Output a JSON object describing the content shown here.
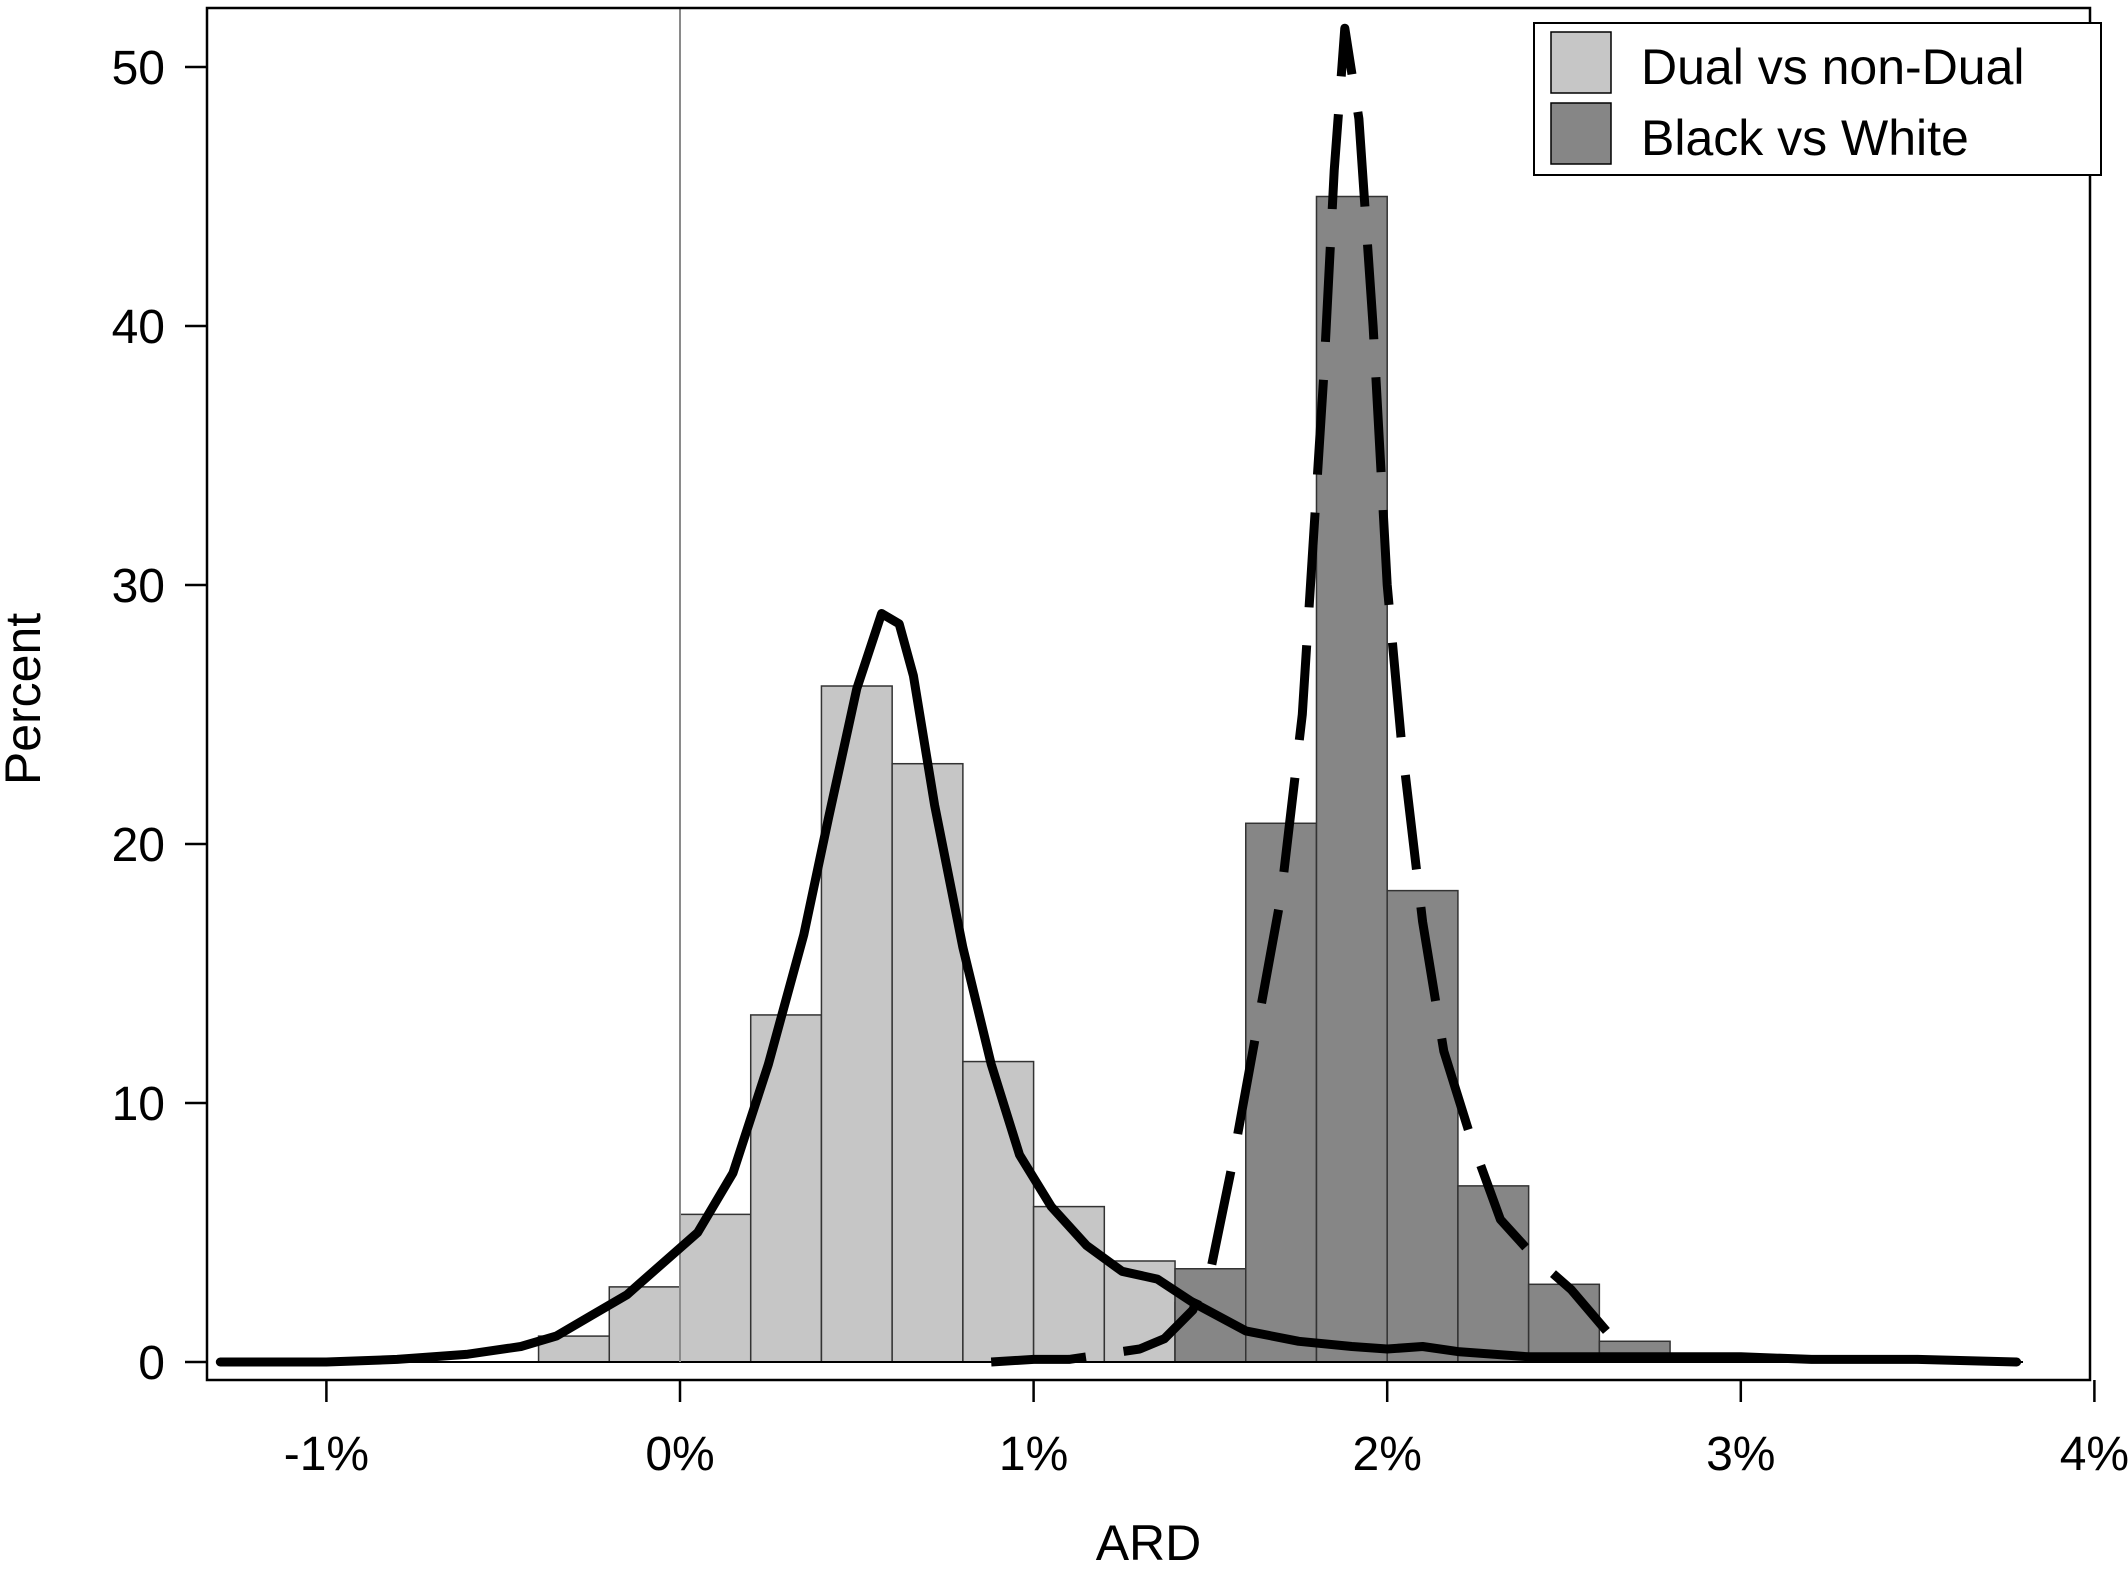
{
  "chart_data": {
    "type": "bar",
    "xlabel": "ARD",
    "ylabel": "Percent",
    "xlim": [
      -1.3,
      4.0
    ],
    "ylim": [
      0,
      52
    ],
    "x_ticks": [
      -1,
      0,
      1,
      2,
      3,
      4
    ],
    "x_tick_labels": [
      "-1%",
      "0%",
      "1%",
      "2%",
      "3%",
      "4%"
    ],
    "y_ticks": [
      0,
      10,
      20,
      30,
      40,
      50
    ],
    "y_tick_labels": [
      "0",
      "10",
      "20",
      "30",
      "40",
      "50"
    ],
    "bin_width": 0.2,
    "grid": false,
    "reference_line_x": 0,
    "legend_position": "top-right",
    "series": [
      {
        "name": "Dual vs non-Dual",
        "color": "#c6c6c6",
        "bins": [
          {
            "x0": -0.4,
            "value": 1.0
          },
          {
            "x0": -0.2,
            "value": 2.9
          },
          {
            "x0": 0.0,
            "value": 5.7
          },
          {
            "x0": 0.2,
            "value": 13.4
          },
          {
            "x0": 0.4,
            "value": 26.1
          },
          {
            "x0": 0.6,
            "value": 23.1
          },
          {
            "x0": 0.8,
            "value": 11.6
          },
          {
            "x0": 1.0,
            "value": 6.0
          },
          {
            "x0": 1.2,
            "value": 3.9
          },
          {
            "x0": 1.4,
            "value": 2.3
          },
          {
            "x0": 1.6,
            "value": 0.7
          },
          {
            "x0": 1.8,
            "value": 0.3
          }
        ],
        "density": {
          "style": "solid",
          "points": [
            [
              -1.3,
              0
            ],
            [
              -1.0,
              0
            ],
            [
              -0.8,
              0.1
            ],
            [
              -0.6,
              0.3
            ],
            [
              -0.45,
              0.6
            ],
            [
              -0.35,
              1.0
            ],
            [
              -0.25,
              1.8
            ],
            [
              -0.15,
              2.6
            ],
            [
              -0.05,
              3.8
            ],
            [
              0.05,
              5.0
            ],
            [
              0.15,
              7.3
            ],
            [
              0.25,
              11.5
            ],
            [
              0.35,
              16.5
            ],
            [
              0.42,
              21.0
            ],
            [
              0.5,
              26.0
            ],
            [
              0.57,
              28.9
            ],
            [
              0.62,
              28.5
            ],
            [
              0.66,
              26.5
            ],
            [
              0.72,
              21.5
            ],
            [
              0.8,
              16.0
            ],
            [
              0.88,
              11.5
            ],
            [
              0.96,
              8.0
            ],
            [
              1.05,
              6.0
            ],
            [
              1.15,
              4.5
            ],
            [
              1.25,
              3.5
            ],
            [
              1.35,
              3.2
            ],
            [
              1.45,
              2.3
            ],
            [
              1.6,
              1.2
            ],
            [
              1.75,
              0.8
            ],
            [
              1.9,
              0.6
            ],
            [
              2.0,
              0.5
            ],
            [
              2.1,
              0.6
            ],
            [
              2.2,
              0.4
            ],
            [
              2.4,
              0.2
            ],
            [
              2.7,
              0.2
            ],
            [
              2.9,
              0.2
            ],
            [
              3.0,
              0.2
            ],
            [
              3.2,
              0.1
            ],
            [
              3.5,
              0.1
            ],
            [
              3.78,
              0
            ]
          ]
        }
      },
      {
        "name": "Black vs White",
        "color": "#868686",
        "bins": [
          {
            "x0": 1.4,
            "value": 3.6
          },
          {
            "x0": 1.6,
            "value": 20.8
          },
          {
            "x0": 1.8,
            "value": 45.0
          },
          {
            "x0": 2.0,
            "value": 18.2
          },
          {
            "x0": 2.2,
            "value": 6.8
          },
          {
            "x0": 2.4,
            "value": 3.0
          },
          {
            "x0": 2.6,
            "value": 0.8
          }
        ],
        "density": {
          "style": "dashed",
          "points": [
            [
              0.88,
              0
            ],
            [
              1.0,
              0.1
            ],
            [
              1.1,
              0.1
            ],
            [
              1.2,
              0.3
            ],
            [
              1.3,
              0.5
            ],
            [
              1.37,
              0.9
            ],
            [
              1.45,
              2.0
            ],
            [
              1.5,
              3.5
            ],
            [
              1.56,
              7.5
            ],
            [
              1.62,
              12.0
            ],
            [
              1.7,
              18.0
            ],
            [
              1.76,
              25.0
            ],
            [
              1.82,
              38.0
            ],
            [
              1.85,
              46.0
            ],
            [
              1.88,
              51.5
            ],
            [
              1.92,
              48.0
            ],
            [
              1.96,
              40.0
            ],
            [
              2.0,
              30.0
            ],
            [
              2.04,
              24.0
            ],
            [
              2.1,
              17.0
            ],
            [
              2.16,
              12.0
            ],
            [
              2.24,
              8.5
            ],
            [
              2.32,
              5.5
            ],
            [
              2.42,
              4.0
            ],
            [
              2.52,
              2.8
            ],
            [
              2.62,
              1.2
            ]
          ]
        }
      }
    ]
  }
}
